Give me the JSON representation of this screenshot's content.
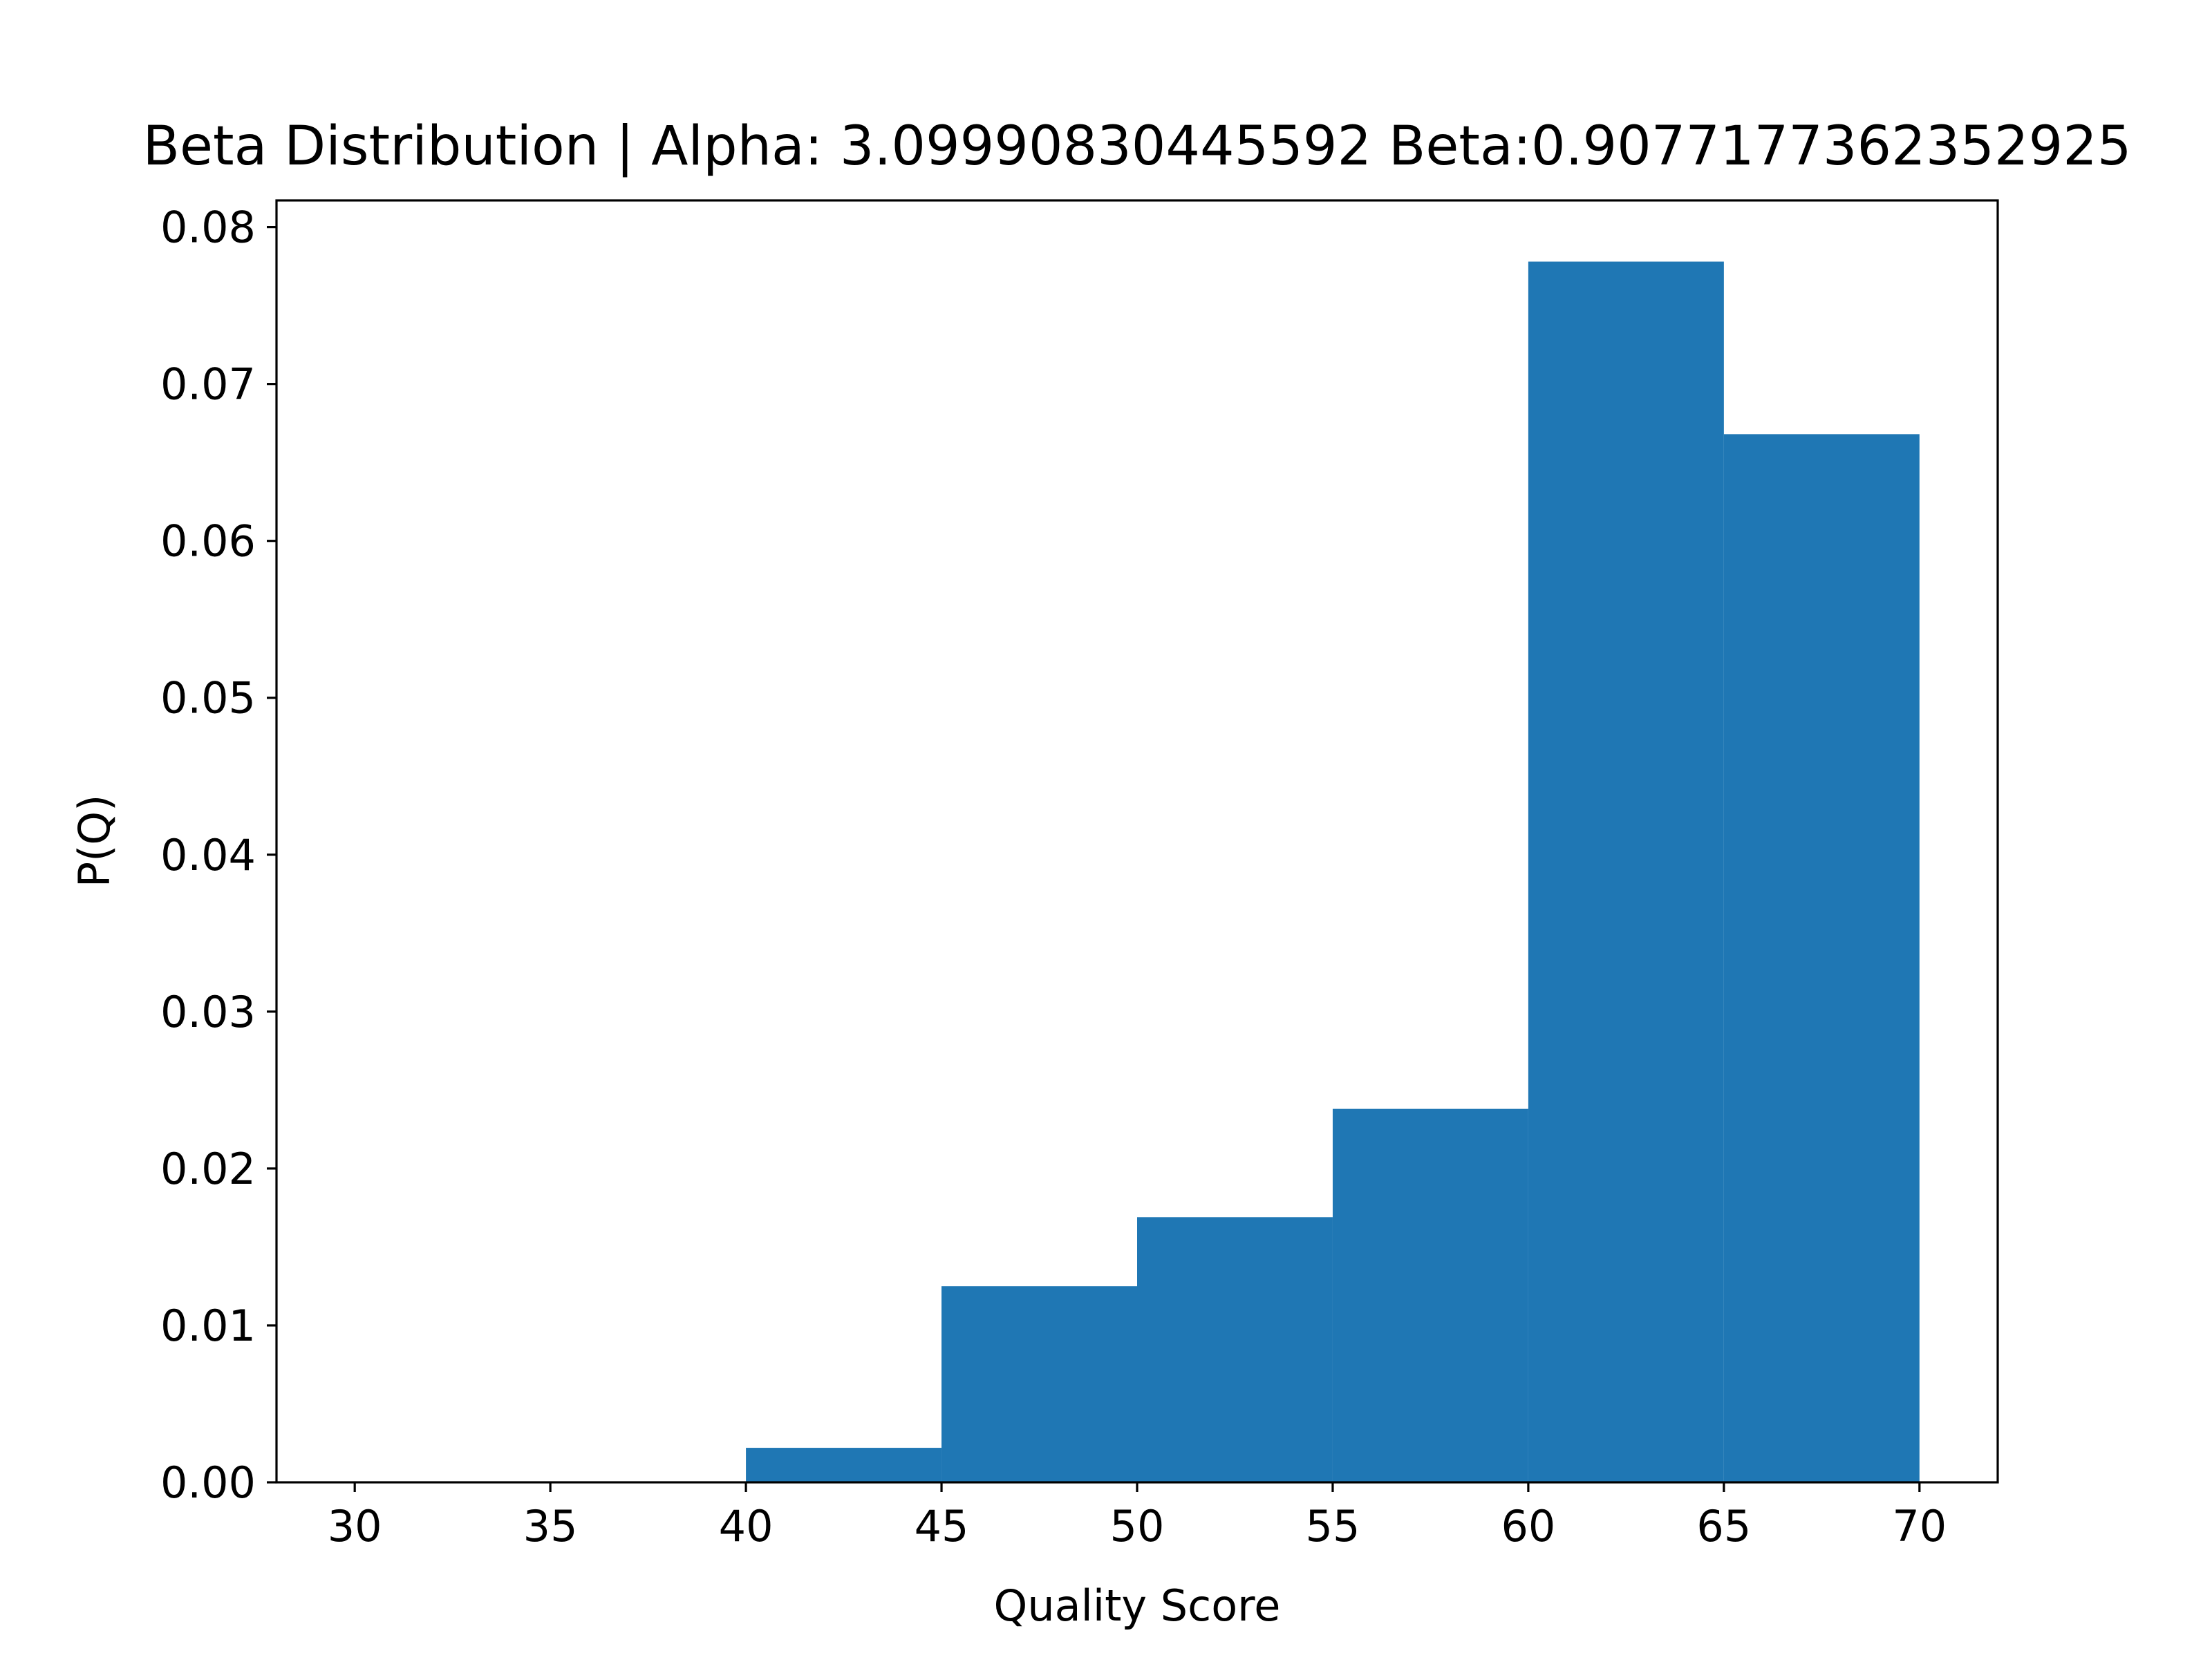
{
  "chart_data": {
    "type": "bar",
    "title": "Beta Distribution | Alpha: 3.09990830445592 Beta:0.9077177362352925",
    "xlabel": "Quality Score",
    "ylabel": "P(Q)",
    "bins": [
      {
        "x0": 40,
        "x1": 45,
        "value": 0.0022
      },
      {
        "x0": 45,
        "x1": 50,
        "value": 0.0125
      },
      {
        "x0": 50,
        "x1": 55,
        "value": 0.0169
      },
      {
        "x0": 55,
        "x1": 60,
        "value": 0.0238
      },
      {
        "x0": 60,
        "x1": 65,
        "value": 0.0778
      },
      {
        "x0": 65,
        "x1": 70,
        "value": 0.0668
      }
    ],
    "xlim": [
      28,
      72
    ],
    "ylim": [
      0,
      0.0817
    ],
    "xticks": [
      30,
      35,
      40,
      45,
      50,
      55,
      60,
      65,
      70
    ],
    "xtick_labels": [
      "30",
      "35",
      "40",
      "45",
      "50",
      "55",
      "60",
      "65",
      "70"
    ],
    "yticks": [
      0,
      0.01,
      0.02,
      0.03,
      0.04,
      0.05,
      0.06,
      0.07,
      0.08
    ],
    "ytick_labels": [
      "0.00",
      "0.01",
      "0.02",
      "0.03",
      "0.04",
      "0.05",
      "0.06",
      "0.07",
      "0.08"
    ],
    "bar_color": "#1f77b4",
    "grid": false,
    "legend": "none"
  }
}
